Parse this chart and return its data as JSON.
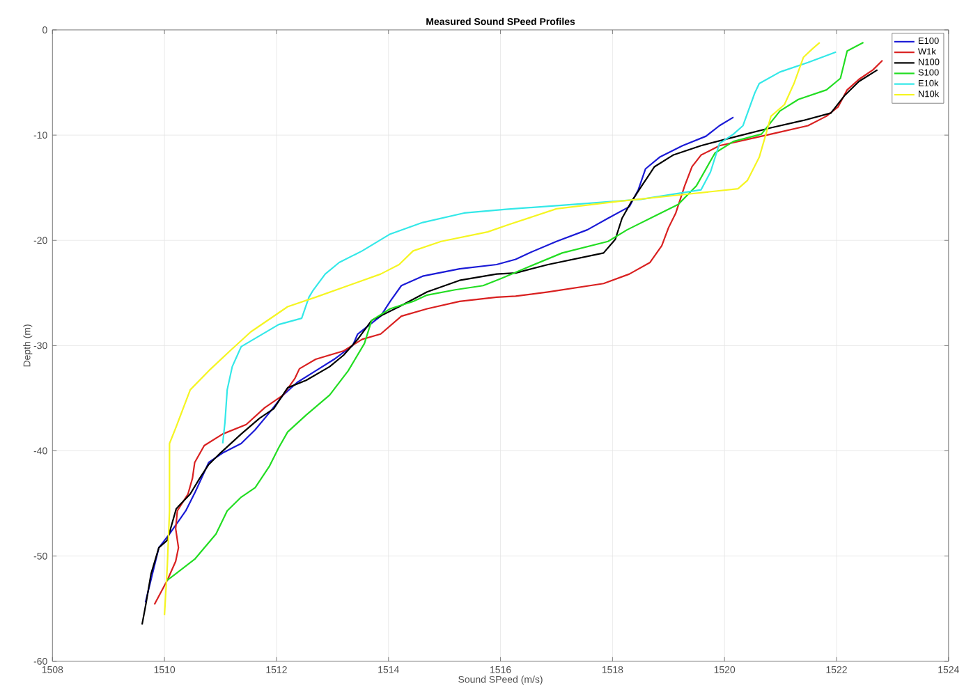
{
  "chart_data": {
    "type": "line",
    "title": "Measured Sound SPeed Profiles",
    "xlabel": "Sound SPeed (m/s)",
    "ylabel": "Depth (m)",
    "xlim": [
      1508,
      1524
    ],
    "xticks": [
      1508,
      1510,
      1512,
      1514,
      1516,
      1518,
      1520,
      1522,
      1524
    ],
    "ylim": [
      -60,
      0
    ],
    "yticks": [
      -60,
      -50,
      -40,
      -30,
      -20,
      -10,
      0
    ],
    "grid": true,
    "legend": "top right",
    "marker": "none",
    "line_style": "solid",
    "series": [
      {
        "name": "E100",
        "color": "#1a1ad6",
        "x": [
          1509.66,
          1509.9,
          1510.09,
          1510.38,
          1510.55,
          1510.79,
          1511.04,
          1511.37,
          1511.62,
          1511.87,
          1512.12,
          1512.37,
          1512.7,
          1513.03,
          1513.36,
          1513.45,
          1513.86,
          1514.03,
          1514.23,
          1514.61,
          1515.27,
          1515.93,
          1516.27,
          1516.51,
          1517.0,
          1517.55,
          1517.92,
          1518.3,
          1518.46,
          1518.59,
          1518.84,
          1519.25,
          1519.67,
          1519.91,
          1520.16
        ],
        "values": [
          -54.4,
          -49.2,
          -47.9,
          -45.7,
          -43.9,
          -41.1,
          -40.2,
          -39.3,
          -38.0,
          -36.4,
          -34.7,
          -33.5,
          -32.4,
          -31.3,
          -30.0,
          -28.9,
          -27.2,
          -25.8,
          -24.3,
          -23.4,
          -22.7,
          -22.3,
          -21.8,
          -21.2,
          -20.1,
          -19.0,
          -17.9,
          -16.8,
          -15.2,
          -13.2,
          -12.1,
          -11.0,
          -10.1,
          -9.1,
          -8.3
        ]
      },
      {
        "name": "W1k",
        "color": "#d92020",
        "x": [
          1509.82,
          1510.05,
          1510.2,
          1510.25,
          1510.2,
          1510.23,
          1510.42,
          1510.5,
          1510.54,
          1510.71,
          1511.04,
          1511.46,
          1511.79,
          1512.12,
          1512.33,
          1512.41,
          1512.7,
          1513.2,
          1513.53,
          1513.86,
          1514.23,
          1514.69,
          1515.27,
          1515.93,
          1516.27,
          1516.85,
          1517.84,
          1518.3,
          1518.67,
          1518.88,
          1519.0,
          1519.13,
          1519.29,
          1519.42,
          1519.58,
          1519.91,
          1520.33,
          1520.83,
          1521.49,
          1521.82,
          1522.03,
          1522.19,
          1522.4,
          1522.65,
          1522.82
        ],
        "values": [
          -54.6,
          -52.3,
          -50.5,
          -49.2,
          -47.4,
          -45.7,
          -44.1,
          -42.6,
          -41.1,
          -39.5,
          -38.4,
          -37.5,
          -35.9,
          -34.7,
          -33.1,
          -32.2,
          -31.3,
          -30.5,
          -29.4,
          -28.9,
          -27.2,
          -26.5,
          -25.8,
          -25.4,
          -25.3,
          -24.9,
          -24.1,
          -23.2,
          -22.1,
          -20.5,
          -18.8,
          -17.4,
          -14.8,
          -13.0,
          -11.9,
          -11.0,
          -10.5,
          -9.9,
          -9.1,
          -8.2,
          -7.3,
          -5.7,
          -4.7,
          -3.8,
          -2.9
        ]
      },
      {
        "name": "N100",
        "color": "#000000",
        "x": [
          1509.6,
          1509.67,
          1509.76,
          1509.9,
          1510.05,
          1510.13,
          1510.21,
          1510.46,
          1510.63,
          1510.79,
          1511.0,
          1511.37,
          1511.7,
          1511.95,
          1512.2,
          1512.53,
          1512.95,
          1513.2,
          1513.45,
          1513.7,
          1514.19,
          1514.69,
          1515.27,
          1515.93,
          1516.27,
          1516.85,
          1517.84,
          1518.05,
          1518.17,
          1518.34,
          1518.5,
          1518.75,
          1519.08,
          1519.58,
          1520.16,
          1520.83,
          1521.41,
          1521.9,
          1522.15,
          1522.4,
          1522.73
        ],
        "values": [
          -56.5,
          -54.5,
          -51.7,
          -49.2,
          -48.5,
          -47.0,
          -45.5,
          -44.1,
          -42.6,
          -41.3,
          -40.2,
          -38.4,
          -36.9,
          -36.0,
          -34.0,
          -33.3,
          -32.0,
          -30.9,
          -29.4,
          -27.6,
          -26.3,
          -24.9,
          -23.8,
          -23.2,
          -23.1,
          -22.3,
          -21.2,
          -19.9,
          -17.9,
          -16.3,
          -15.0,
          -13.0,
          -11.9,
          -11.0,
          -10.2,
          -9.3,
          -8.6,
          -7.9,
          -6.2,
          -4.9,
          -3.8
        ]
      },
      {
        "name": "S100",
        "color": "#22dd22",
        "x": [
          1510.05,
          1510.54,
          1510.92,
          1511.12,
          1511.37,
          1511.62,
          1511.87,
          1512.04,
          1512.2,
          1512.53,
          1512.95,
          1513.28,
          1513.57,
          1513.7,
          1514.03,
          1514.44,
          1514.69,
          1515.19,
          1515.69,
          1516.02,
          1516.51,
          1517.1,
          1517.92,
          1518.26,
          1518.75,
          1519.17,
          1519.5,
          1519.83,
          1520.16,
          1520.66,
          1520.99,
          1521.32,
          1521.82,
          1522.07,
          1522.19,
          1522.48
        ],
        "values": [
          -52.3,
          -50.3,
          -47.9,
          -45.7,
          -44.4,
          -43.5,
          -41.5,
          -39.7,
          -38.2,
          -36.6,
          -34.7,
          -32.4,
          -29.8,
          -27.6,
          -26.5,
          -25.8,
          -25.2,
          -24.7,
          -24.3,
          -23.6,
          -22.5,
          -21.2,
          -20.1,
          -19.0,
          -17.7,
          -16.6,
          -14.8,
          -11.7,
          -10.6,
          -9.9,
          -7.7,
          -6.6,
          -5.7,
          -4.6,
          -2.0,
          -1.2
        ]
      },
      {
        "name": "E10k",
        "color": "#33e8e8",
        "x": [
          1511.04,
          1511.08,
          1511.12,
          1511.21,
          1511.37,
          1512.04,
          1512.45,
          1512.58,
          1512.66,
          1512.87,
          1513.12,
          1513.53,
          1514.03,
          1514.61,
          1515.35,
          1516.1,
          1517.26,
          1518.5,
          1519.58,
          1519.75,
          1519.91,
          1520.16,
          1520.33,
          1520.54,
          1520.62,
          1520.99,
          1521.49,
          1521.99
        ],
        "values": [
          -39.3,
          -37.3,
          -34.2,
          -32.0,
          -30.1,
          -28.0,
          -27.4,
          -25.4,
          -24.7,
          -23.2,
          -22.1,
          -21.0,
          -19.4,
          -18.3,
          -17.4,
          -17.05,
          -16.6,
          -16.1,
          -15.2,
          -13.5,
          -10.8,
          -9.9,
          -9.1,
          -6.0,
          -5.1,
          -4.0,
          -3.1,
          -2.1
        ]
      },
      {
        "name": "N10k",
        "color": "#f5f522",
        "x": [
          1510.0,
          1510.05,
          1510.09,
          1510.09,
          1510.21,
          1510.46,
          1510.79,
          1511.21,
          1511.54,
          1512.2,
          1512.7,
          1513.28,
          1513.86,
          1514.19,
          1514.44,
          1514.94,
          1515.77,
          1516.15,
          1517.0,
          1518.09,
          1519.17,
          1520.24,
          1520.41,
          1520.62,
          1520.74,
          1520.83,
          1521.07,
          1521.24,
          1521.41,
          1521.57,
          1521.7
        ],
        "values": [
          -55.6,
          -51.0,
          -45.7,
          -39.3,
          -37.7,
          -34.2,
          -32.4,
          -30.3,
          -28.7,
          -26.3,
          -25.4,
          -24.3,
          -23.2,
          -22.3,
          -21.0,
          -20.1,
          -19.2,
          -18.5,
          -17.0,
          -16.3,
          -15.7,
          -15.1,
          -14.3,
          -12.1,
          -9.9,
          -8.2,
          -7.1,
          -5.1,
          -2.6,
          -1.8,
          -1.2
        ]
      }
    ]
  }
}
